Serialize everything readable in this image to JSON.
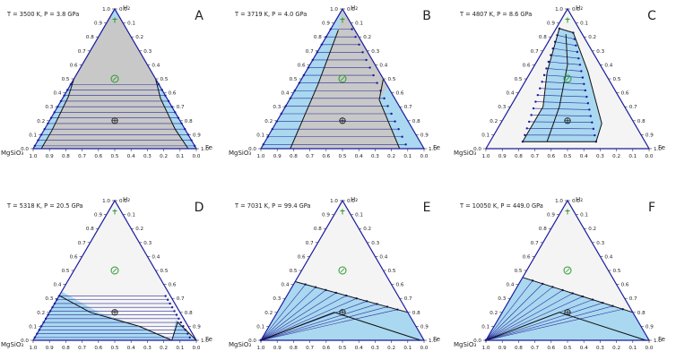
{
  "figure": {
    "vertices": {
      "top": "H₂",
      "left": "MgSiO₃",
      "right": "Fe"
    },
    "tick_labels": [
      "0.0",
      "0.1",
      "0.2",
      "0.3",
      "0.4",
      "0.5",
      "0.6",
      "0.7",
      "0.8",
      "0.9",
      "1.0"
    ],
    "colors": {
      "two_phase": "#a9d8f0",
      "miscible": "#c8c8c8",
      "outer": "#f4f4f4",
      "tie_line": "#2a2a9a",
      "tie_point": "#1a1aa8",
      "boundary": "#111111",
      "earth_symbol": "#111111",
      "planet_symbol": "#2a9a2a"
    },
    "symbols": [
      "earth",
      "neptune",
      "uranus"
    ]
  },
  "chart_data": [
    {
      "id": "A",
      "type": "ternary",
      "panel_label": "A",
      "condition": "T = 3500 K, P = 3.8 GPa",
      "vertices": [
        "MgSiO₃",
        "Fe",
        "H₂"
      ],
      "tie_line_count": 12,
      "regions": [
        "miscible",
        "two-phase (left edge)",
        "two-phase (right edge)",
        "small gap near H₂"
      ]
    },
    {
      "id": "B",
      "type": "ternary",
      "panel_label": "B",
      "condition": "T = 3719 K, P = 4.0 GPa",
      "vertices": [
        "MgSiO₃",
        "Fe",
        "H₂"
      ],
      "tie_line_count": 16,
      "regions": [
        "miscible",
        "two-phase (left band)",
        "two-phase (right band)"
      ]
    },
    {
      "id": "C",
      "type": "ternary",
      "panel_label": "C",
      "condition": "T = 4807 K, P = 8.6 GPa",
      "vertices": [
        "MgSiO₃",
        "Fe",
        "H₂"
      ],
      "tie_line_count": 18,
      "regions": [
        "miscible (outer)",
        "two-phase (central lens)"
      ]
    },
    {
      "id": "D",
      "type": "ternary",
      "panel_label": "D",
      "condition": "T = 5318 K, P = 20.5 GPa",
      "vertices": [
        "MgSiO₃",
        "Fe",
        "H₂"
      ],
      "tie_line_count": 12,
      "regions": [
        "miscible",
        "two-phase (bottom)"
      ]
    },
    {
      "id": "E",
      "type": "ternary",
      "panel_label": "E",
      "condition": "T = 7031 K, P = 99.4 GPa",
      "vertices": [
        "MgSiO₃",
        "Fe",
        "H₂"
      ],
      "tie_line_count": 10,
      "regions": [
        "miscible",
        "two-phase (bottom fan)"
      ]
    },
    {
      "id": "F",
      "type": "ternary",
      "panel_label": "F",
      "condition": "T = 10050 K, P = 449.0 GPa",
      "vertices": [
        "MgSiO₃",
        "Fe",
        "H₂"
      ],
      "tie_line_count": 10,
      "regions": [
        "miscible",
        "two-phase (bottom fan)"
      ]
    }
  ]
}
